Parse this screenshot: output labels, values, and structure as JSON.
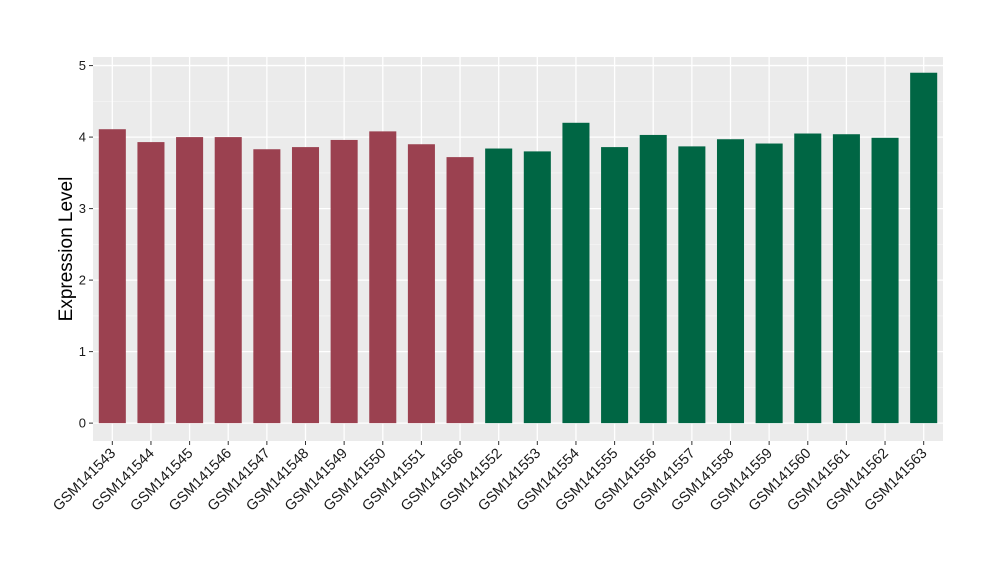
{
  "chart_data": {
    "type": "bar",
    "title": "",
    "xlabel": "",
    "ylabel": "Expression Level",
    "ylim": [
      -0.25,
      5.12
    ],
    "yticks": [
      0,
      1,
      2,
      3,
      4,
      5
    ],
    "grid": true,
    "legend": "none",
    "group_colors": [
      "#9b4150",
      "#006644"
    ],
    "background": "#ebebeb",
    "categories": [
      "GSM141543",
      "GSM141544",
      "GSM141545",
      "GSM141546",
      "GSM141547",
      "GSM141548",
      "GSM141549",
      "GSM141550",
      "GSM141551",
      "GSM141566",
      "GSM141552",
      "GSM141553",
      "GSM141554",
      "GSM141555",
      "GSM141556",
      "GSM141557",
      "GSM141558",
      "GSM141559",
      "GSM141560",
      "GSM141561",
      "GSM141562",
      "GSM141563"
    ],
    "values": [
      4.11,
      3.93,
      4.0,
      4.0,
      3.83,
      3.86,
      3.96,
      4.08,
      3.9,
      3.72,
      3.84,
      3.8,
      4.2,
      3.86,
      4.03,
      3.87,
      3.97,
      3.91,
      4.05,
      4.04,
      3.99,
      4.9
    ],
    "groups": [
      0,
      0,
      0,
      0,
      0,
      0,
      0,
      0,
      0,
      0,
      1,
      1,
      1,
      1,
      1,
      1,
      1,
      1,
      1,
      1,
      1,
      1
    ]
  }
}
